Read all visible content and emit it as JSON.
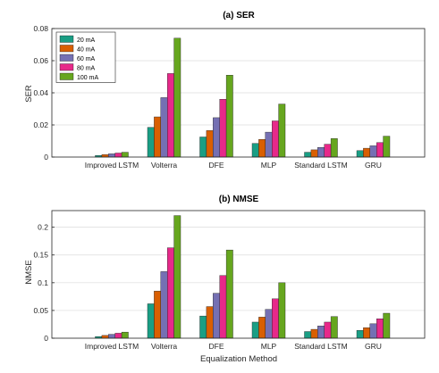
{
  "chart_data": [
    {
      "type": "bar",
      "title": "(a) SER",
      "xlabel": "",
      "ylabel": "SER",
      "ylim": [
        0,
        0.08
      ],
      "yticks": [
        "0",
        "0.02",
        "0.04",
        "0.06",
        "0.08"
      ],
      "grid": true,
      "legend_position": "top-left",
      "categories": [
        "Improved LSTM",
        "Volterra",
        "DFE",
        "MLP",
        "Standard LSTM",
        "GRU"
      ],
      "series": [
        {
          "name": "20 mA",
          "color": "#1a9e84",
          "values": [
            0.001,
            0.0185,
            0.0125,
            0.0085,
            0.003,
            0.004
          ]
        },
        {
          "name": "40 mA",
          "color": "#d95f02",
          "values": [
            0.0015,
            0.025,
            0.0165,
            0.011,
            0.0045,
            0.0055
          ]
        },
        {
          "name": "60 mA",
          "color": "#7570b3",
          "values": [
            0.002,
            0.037,
            0.0245,
            0.0155,
            0.006,
            0.007
          ]
        },
        {
          "name": "80 mA",
          "color": "#e7298a",
          "values": [
            0.0025,
            0.052,
            0.036,
            0.0225,
            0.008,
            0.009
          ]
        },
        {
          "name": "100 mA",
          "color": "#66a61e",
          "values": [
            0.003,
            0.074,
            0.051,
            0.033,
            0.0115,
            0.013
          ]
        }
      ]
    },
    {
      "type": "bar",
      "title": "(b) NMSE",
      "xlabel": "Equalization Method",
      "ylabel": "NMSE",
      "ylim": [
        0,
        0.23
      ],
      "yticks": [
        "0",
        "0.05",
        "0.1",
        "0.15",
        "0.2"
      ],
      "grid": true,
      "categories": [
        "Improved LSTM",
        "Volterra",
        "DFE",
        "MLP",
        "Standard LSTM",
        "GRU"
      ],
      "series": [
        {
          "name": "20 mA",
          "color": "#1a9e84",
          "values": [
            0.003,
            0.062,
            0.04,
            0.029,
            0.012,
            0.014
          ]
        },
        {
          "name": "40 mA",
          "color": "#d95f02",
          "values": [
            0.005,
            0.085,
            0.057,
            0.038,
            0.016,
            0.019
          ]
        },
        {
          "name": "60 mA",
          "color": "#7570b3",
          "values": [
            0.007,
            0.12,
            0.081,
            0.052,
            0.022,
            0.026
          ]
        },
        {
          "name": "80 mA",
          "color": "#e7298a",
          "values": [
            0.009,
            0.163,
            0.113,
            0.071,
            0.029,
            0.035
          ]
        },
        {
          "name": "100 mA",
          "color": "#66a61e",
          "values": [
            0.011,
            0.221,
            0.159,
            0.1,
            0.039,
            0.045
          ]
        }
      ]
    }
  ]
}
